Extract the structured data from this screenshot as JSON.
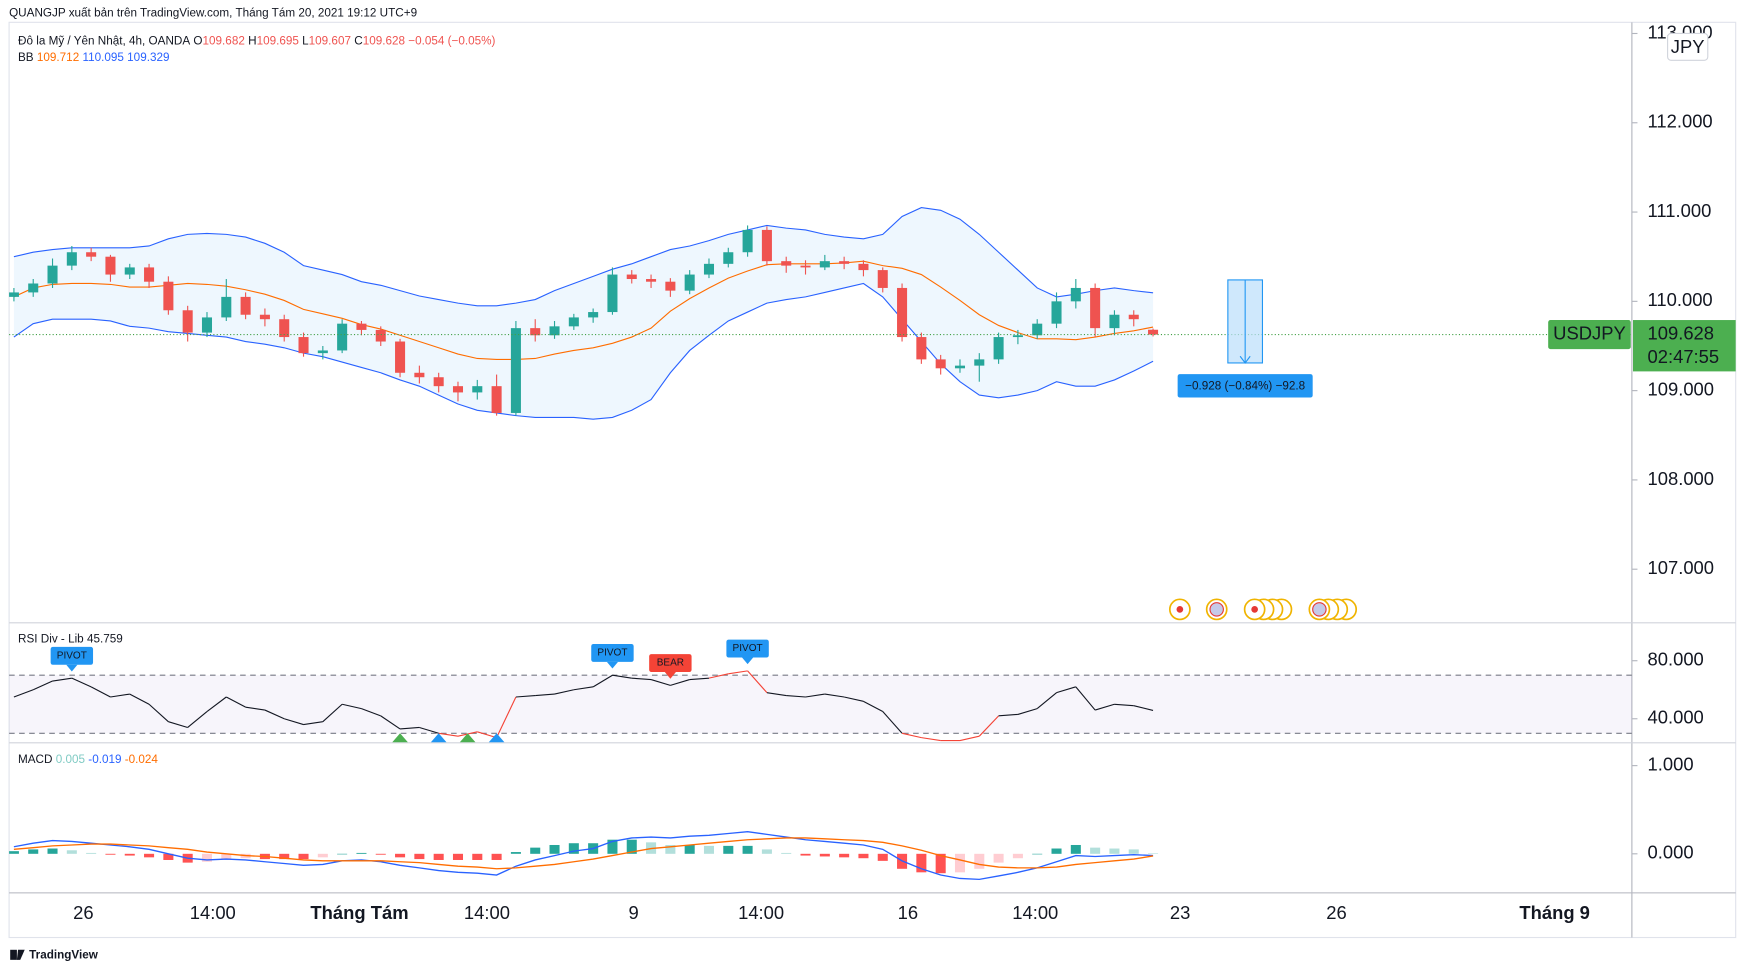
{
  "header": {
    "caption": "QUANGJP xuất bản trên TradingView.com, Tháng Tám 20, 2021 19:12 UTC+9",
    "logo": "TradingView"
  },
  "chart_data": [
    {
      "type": "candlestick",
      "symbol_title": "Đô la Mỹ / Yên Nhật, 4h, OANDA",
      "ohlc_letters": [
        "O",
        "H",
        "L",
        "C"
      ],
      "change_label": "−0.054 (−0.05%)",
      "bb_title": "BB",
      "currency": "JPY",
      "symbol": "USDJPY",
      "countdown": "02:47:55",
      "up_color": "#26a69a",
      "down_color": "#ef5350",
      "price_line_color": "#43a047",
      "ohlc": [
        [
          110.05,
          110.15,
          110.0,
          110.1
        ],
        [
          110.1,
          110.25,
          110.05,
          110.2
        ],
        [
          110.2,
          110.48,
          110.15,
          110.4
        ],
        [
          110.4,
          110.62,
          110.35,
          110.55
        ],
        [
          110.55,
          110.6,
          110.45,
          110.5
        ],
        [
          110.5,
          110.52,
          110.22,
          110.3
        ],
        [
          110.3,
          110.42,
          110.25,
          110.38
        ],
        [
          110.38,
          110.42,
          110.15,
          110.22
        ],
        [
          110.22,
          110.28,
          109.85,
          109.9
        ],
        [
          109.9,
          109.95,
          109.55,
          109.65
        ],
        [
          109.65,
          109.88,
          109.6,
          109.82
        ],
        [
          109.82,
          110.25,
          109.78,
          110.05
        ],
        [
          110.05,
          110.1,
          109.8,
          109.85
        ],
        [
          109.85,
          109.92,
          109.72,
          109.8
        ],
        [
          109.8,
          109.85,
          109.55,
          109.6
        ],
        [
          109.6,
          109.65,
          109.38,
          109.42
        ],
        [
          109.42,
          109.5,
          109.35,
          109.45
        ],
        [
          109.45,
          109.8,
          109.42,
          109.75
        ],
        [
          109.75,
          109.78,
          109.62,
          109.68
        ],
        [
          109.68,
          109.72,
          109.5,
          109.55
        ],
        [
          109.55,
          109.58,
          109.15,
          109.2
        ],
        [
          109.2,
          109.28,
          109.08,
          109.15
        ],
        [
          109.15,
          109.2,
          108.98,
          109.05
        ],
        [
          109.05,
          109.1,
          108.88,
          108.98
        ],
        [
          108.98,
          109.12,
          108.9,
          109.05
        ],
        [
          109.05,
          109.18,
          108.72,
          108.75
        ],
        [
          108.75,
          109.78,
          108.72,
          109.7
        ],
        [
          109.7,
          109.8,
          109.55,
          109.62
        ],
        [
          109.62,
          109.78,
          109.58,
          109.72
        ],
        [
          109.72,
          109.86,
          109.68,
          109.82
        ],
        [
          109.82,
          109.92,
          109.76,
          109.88
        ],
        [
          109.88,
          110.38,
          109.85,
          110.3
        ],
        [
          110.3,
          110.35,
          110.2,
          110.25
        ],
        [
          110.25,
          110.3,
          110.15,
          110.22
        ],
        [
          110.22,
          110.26,
          110.05,
          110.12
        ],
        [
          110.12,
          110.35,
          110.08,
          110.3
        ],
        [
          110.3,
          110.48,
          110.26,
          110.42
        ],
        [
          110.42,
          110.6,
          110.38,
          110.55
        ],
        [
          110.55,
          110.85,
          110.5,
          110.8
        ],
        [
          110.8,
          110.84,
          110.4,
          110.45
        ],
        [
          110.45,
          110.5,
          110.32,
          110.4
        ],
        [
          110.4,
          110.46,
          110.3,
          110.38
        ],
        [
          110.38,
          110.52,
          110.35,
          110.45
        ],
        [
          110.45,
          110.5,
          110.36,
          110.42
        ],
        [
          110.42,
          110.46,
          110.28,
          110.35
        ],
        [
          110.35,
          110.38,
          110.1,
          110.15
        ],
        [
          110.15,
          110.2,
          109.55,
          109.6
        ],
        [
          109.6,
          109.65,
          109.3,
          109.35
        ],
        [
          109.35,
          109.4,
          109.18,
          109.25
        ],
        [
          109.25,
          109.35,
          109.2,
          109.28
        ],
        [
          109.28,
          109.42,
          109.1,
          109.35
        ],
        [
          109.35,
          109.65,
          109.3,
          109.6
        ],
        [
          109.6,
          109.68,
          109.52,
          109.62
        ],
        [
          109.62,
          109.8,
          109.58,
          109.75
        ],
        [
          109.75,
          110.1,
          109.7,
          110.0
        ],
        [
          110.0,
          110.25,
          109.92,
          110.15
        ],
        [
          110.15,
          110.2,
          109.6,
          109.7
        ],
        [
          109.7,
          109.9,
          109.62,
          109.85
        ],
        [
          109.85,
          109.9,
          109.72,
          109.8
        ],
        [
          109.682,
          109.695,
          109.607,
          109.628
        ]
      ],
      "bb": {
        "basis": [
          110.05,
          110.15,
          110.19,
          110.2,
          110.2,
          110.19,
          110.16,
          110.16,
          110.18,
          110.2,
          110.19,
          110.17,
          110.13,
          110.08,
          110.01,
          109.91,
          109.86,
          109.81,
          109.74,
          109.69,
          109.62,
          109.55,
          109.48,
          109.41,
          109.36,
          109.35,
          109.35,
          109.36,
          109.41,
          109.45,
          109.48,
          109.53,
          109.6,
          109.7,
          109.89,
          110.03,
          110.15,
          110.26,
          110.34,
          110.41,
          110.42,
          110.42,
          110.42,
          110.43,
          110.45,
          110.4,
          110.37,
          110.3,
          110.16,
          110.01,
          109.85,
          109.73,
          109.65,
          109.58,
          109.58,
          109.57,
          109.6,
          109.64,
          109.67,
          109.712
        ],
        "upper": [
          110.5,
          110.55,
          110.58,
          110.6,
          110.6,
          110.6,
          110.6,
          110.62,
          110.7,
          110.75,
          110.76,
          110.75,
          110.72,
          110.65,
          110.55,
          110.4,
          110.35,
          110.3,
          110.22,
          110.18,
          110.12,
          110.06,
          110.02,
          109.98,
          109.95,
          109.95,
          109.98,
          110.02,
          110.12,
          110.2,
          110.28,
          110.36,
          110.42,
          110.5,
          110.58,
          110.62,
          110.68,
          110.75,
          110.8,
          110.85,
          110.82,
          110.8,
          110.75,
          110.72,
          110.7,
          110.75,
          110.95,
          111.05,
          111.02,
          110.92,
          110.75,
          110.55,
          110.35,
          110.15,
          110.05,
          110.08,
          110.12,
          110.15,
          110.12,
          110.095
        ],
        "lower": [
          109.6,
          109.75,
          109.8,
          109.8,
          109.8,
          109.78,
          109.72,
          109.7,
          109.66,
          109.64,
          109.62,
          109.6,
          109.55,
          109.52,
          109.48,
          109.42,
          109.38,
          109.32,
          109.26,
          109.2,
          109.12,
          109.05,
          108.95,
          108.85,
          108.78,
          108.75,
          108.72,
          108.7,
          108.7,
          108.7,
          108.68,
          108.7,
          108.78,
          108.9,
          109.2,
          109.45,
          109.62,
          109.78,
          109.88,
          109.98,
          110.02,
          110.05,
          110.1,
          110.15,
          110.2,
          110.05,
          109.8,
          109.55,
          109.3,
          109.1,
          108.95,
          108.92,
          108.95,
          109.0,
          109.1,
          109.05,
          109.05,
          109.12,
          109.22,
          109.329
        ]
      },
      "bb_colors": {
        "basis": "#ff6d00",
        "band": "#2962ff",
        "fill": "#e3f2fd"
      },
      "ylim": [
        106.4,
        113.125
      ],
      "yticks": [
        {
          "value": 107,
          "label": "107.000"
        },
        {
          "value": 108,
          "label": "108.000"
        },
        {
          "value": 109,
          "label": "109.000"
        },
        {
          "value": 110,
          "label": "110.000"
        },
        {
          "value": 111,
          "label": "111.000"
        },
        {
          "value": 112,
          "label": "112.000"
        },
        {
          "value": 113,
          "label": "113.000"
        }
      ],
      "xlim": [
        -0.25,
        83.8
      ],
      "xlabels": [
        {
          "label": "26",
          "index": 3.6
        },
        {
          "label": "14:00",
          "index": 10.3
        },
        {
          "label": "Tháng Tám",
          "index": 17.9,
          "bold": true
        },
        {
          "label": "14:00",
          "index": 24.5
        },
        {
          "label": "9",
          "index": 32.1
        },
        {
          "label": "14:00",
          "index": 38.7
        },
        {
          "label": "16",
          "index": 46.3
        },
        {
          "label": "14:00",
          "index": 52.9
        },
        {
          "label": "23",
          "index": 60.4
        },
        {
          "label": "26",
          "index": 68.5
        },
        {
          "label": "Tháng 9",
          "index": 79.8,
          "bold": true
        }
      ],
      "measure": {
        "from": 110.24,
        "to": 109.31,
        "label": "−0.928 (−0.84%) −92.8"
      }
    },
    {
      "type": "line",
      "title": "RSI Div - Lib",
      "color": "#131722",
      "extreme_color": "#f44336",
      "hlines": [
        70,
        30
      ],
      "values": [
        55,
        60,
        66,
        68,
        62,
        55,
        57,
        50,
        38,
        34,
        45,
        55,
        48,
        46,
        40,
        36,
        38,
        50,
        47,
        42,
        33,
        34,
        30,
        28,
        31,
        27,
        55,
        56,
        57,
        60,
        62,
        70,
        68,
        67,
        63,
        67,
        68,
        71,
        73,
        58,
        56,
        55,
        57,
        55,
        52,
        45,
        30,
        27,
        25,
        25,
        28,
        42,
        43,
        47,
        58,
        62,
        46,
        50,
        49,
        45.759
      ],
      "ylim": [
        23.85,
        106.15
      ],
      "yticks": [
        {
          "value": 80,
          "label": "80.000"
        },
        {
          "value": 40,
          "label": "40.000"
        }
      ],
      "annotations": [
        {
          "text": "PIVOT",
          "index": 3,
          "color": "#2196f3"
        },
        {
          "text": "PIVOT",
          "index": 31,
          "color": "#2196f3"
        },
        {
          "text": "BEAR",
          "index": 34,
          "color": "#f44336"
        },
        {
          "text": "PIVOT",
          "index": 38,
          "color": "#2196f3"
        }
      ],
      "signals": [
        {
          "index": 20,
          "color": "#4caf50"
        },
        {
          "index": 22,
          "color": "#2196f3"
        },
        {
          "index": 23.5,
          "color": "#4caf50"
        },
        {
          "index": 25,
          "color": "#2196f3"
        }
      ]
    },
    {
      "type": "macd",
      "title": "MACD",
      "macd_color": "#2962ff",
      "signal_color": "#ff6d00",
      "hist": [
        0.03,
        0.05,
        0.06,
        0.04,
        0.01,
        -0.01,
        -0.02,
        -0.04,
        -0.07,
        -0.1,
        -0.09,
        -0.06,
        -0.05,
        -0.06,
        -0.06,
        -0.06,
        -0.04,
        0.0,
        0.01,
        -0.01,
        -0.04,
        -0.06,
        -0.07,
        -0.07,
        -0.07,
        -0.07,
        0.02,
        0.07,
        0.1,
        0.12,
        0.12,
        0.16,
        0.16,
        0.13,
        0.1,
        0.1,
        0.09,
        0.09,
        0.09,
        0.05,
        0.01,
        -0.02,
        -0.03,
        -0.04,
        -0.05,
        -0.08,
        -0.17,
        -0.21,
        -0.22,
        -0.21,
        -0.17,
        -0.1,
        -0.05,
        0.0,
        0.06,
        0.1,
        0.07,
        0.06,
        0.05,
        0.005
      ],
      "macd": [
        0.08,
        0.12,
        0.15,
        0.14,
        0.12,
        0.1,
        0.08,
        0.05,
        0.0,
        -0.05,
        -0.07,
        -0.06,
        -0.07,
        -0.09,
        -0.11,
        -0.13,
        -0.12,
        -0.08,
        -0.07,
        -0.09,
        -0.13,
        -0.16,
        -0.19,
        -0.21,
        -0.22,
        -0.24,
        -0.14,
        -0.07,
        -0.02,
        0.03,
        0.06,
        0.14,
        0.18,
        0.19,
        0.18,
        0.2,
        0.21,
        0.23,
        0.25,
        0.22,
        0.19,
        0.16,
        0.14,
        0.12,
        0.1,
        0.05,
        -0.08,
        -0.17,
        -0.24,
        -0.28,
        -0.29,
        -0.25,
        -0.21,
        -0.16,
        -0.09,
        -0.02,
        -0.03,
        -0.02,
        -0.01,
        -0.019
      ],
      "signal": [
        0.05,
        0.07,
        0.09,
        0.1,
        0.11,
        0.11,
        0.1,
        0.09,
        0.07,
        0.05,
        0.02,
        0.0,
        -0.02,
        -0.03,
        -0.05,
        -0.07,
        -0.08,
        -0.08,
        -0.08,
        -0.08,
        -0.09,
        -0.1,
        -0.12,
        -0.14,
        -0.15,
        -0.17,
        -0.16,
        -0.14,
        -0.12,
        -0.09,
        -0.06,
        -0.02,
        0.02,
        0.06,
        0.08,
        0.1,
        0.12,
        0.14,
        0.16,
        0.17,
        0.18,
        0.18,
        0.17,
        0.16,
        0.15,
        0.13,
        0.09,
        0.04,
        -0.02,
        -0.07,
        -0.12,
        -0.15,
        -0.16,
        -0.16,
        -0.15,
        -0.12,
        -0.1,
        -0.08,
        -0.06,
        -0.024
      ],
      "ylim": [
        -0.443,
        1.253
      ],
      "yticks": [
        {
          "value": 1,
          "label": "1.000"
        },
        {
          "value": 0,
          "label": "0.000"
        }
      ]
    }
  ]
}
